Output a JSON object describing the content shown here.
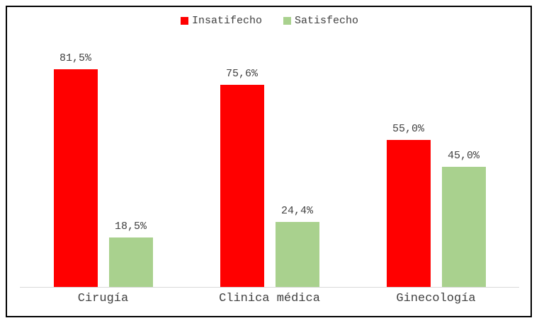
{
  "chart_data": {
    "type": "bar",
    "categories": [
      "Cirugía",
      "Clinica médica",
      "Ginecología"
    ],
    "series": [
      {
        "name": "Insatifecho",
        "color": "#ff0000",
        "values": [
          81.5,
          75.6,
          55.0
        ],
        "labels": [
          "81,5%",
          "75,6%",
          "55,0%"
        ]
      },
      {
        "name": "Satisfecho",
        "color": "#a9d18e",
        "values": [
          18.5,
          24.4,
          45.0
        ],
        "labels": [
          "18,5%",
          "24,4%",
          "45,0%"
        ]
      }
    ],
    "title": "",
    "xlabel": "",
    "ylabel": "",
    "ylim": [
      0,
      90
    ],
    "grid": false,
    "legend_position": "top",
    "axis_line_color": "#d9d9d9",
    "text_color": "#404040",
    "frame_border_color": "#000000",
    "background_color": "#ffffff"
  }
}
